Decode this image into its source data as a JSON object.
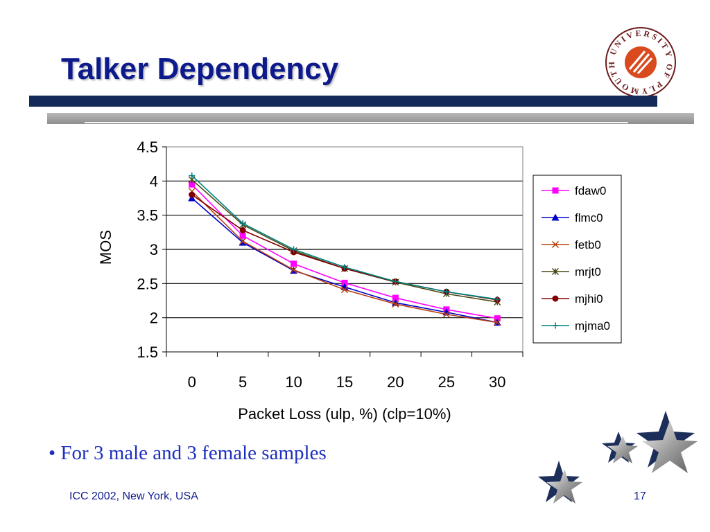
{
  "slide": {
    "title": "Talker Dependency",
    "bullet": "• For 3 male and 3 female samples",
    "footer_left": "ICC 2002, New York, USA",
    "page_number": "17"
  },
  "logo": {
    "text": "UNIVERSITY OF PLYMOUTH",
    "color": "#d94a1e"
  },
  "colors": {
    "title": "#0d1a8c",
    "navy_bar": "#142a58",
    "bullet": "#1d2fbf"
  },
  "chart_data": {
    "type": "line",
    "title": "",
    "xlabel": "Packet Loss (ulp, %) (clp=10%)",
    "ylabel": "MOS",
    "x": [
      0,
      5,
      10,
      15,
      20,
      25,
      30
    ],
    "x_tick_labels": [
      "0",
      "5",
      "10",
      "15",
      "20",
      "25",
      "30"
    ],
    "ylim": [
      1.5,
      4.5
    ],
    "y_ticks": [
      "1.5",
      "2",
      "2.5",
      "3",
      "3.5",
      "4",
      "4.5"
    ],
    "grid": true,
    "legend_position": "right",
    "series": [
      {
        "name": "fdaw0",
        "color": "#ff00ff",
        "marker": "square",
        "values": [
          3.95,
          3.2,
          2.79,
          2.51,
          2.29,
          2.12,
          1.99
        ]
      },
      {
        "name": "flmc0",
        "color": "#0000cc",
        "marker": "triangle",
        "values": [
          3.75,
          3.1,
          2.69,
          2.45,
          2.22,
          2.08,
          1.93
        ]
      },
      {
        "name": "fetb0",
        "color": "#b8400e",
        "marker": "x",
        "values": [
          3.85,
          3.12,
          2.7,
          2.41,
          2.2,
          2.05,
          1.93
        ]
      },
      {
        "name": "mrjt0",
        "color": "#4a4a14",
        "marker": "asterisk",
        "values": [
          4.02,
          3.36,
          2.98,
          2.72,
          2.52,
          2.35,
          2.23
        ]
      },
      {
        "name": "mjhi0",
        "color": "#800000",
        "marker": "circle",
        "values": [
          3.8,
          3.28,
          2.96,
          2.72,
          2.53,
          2.38,
          2.26
        ]
      },
      {
        "name": "mjma0",
        "color": "#008080",
        "marker": "plus",
        "values": [
          4.08,
          3.38,
          3.0,
          2.74,
          2.53,
          2.38,
          2.27
        ]
      }
    ]
  }
}
